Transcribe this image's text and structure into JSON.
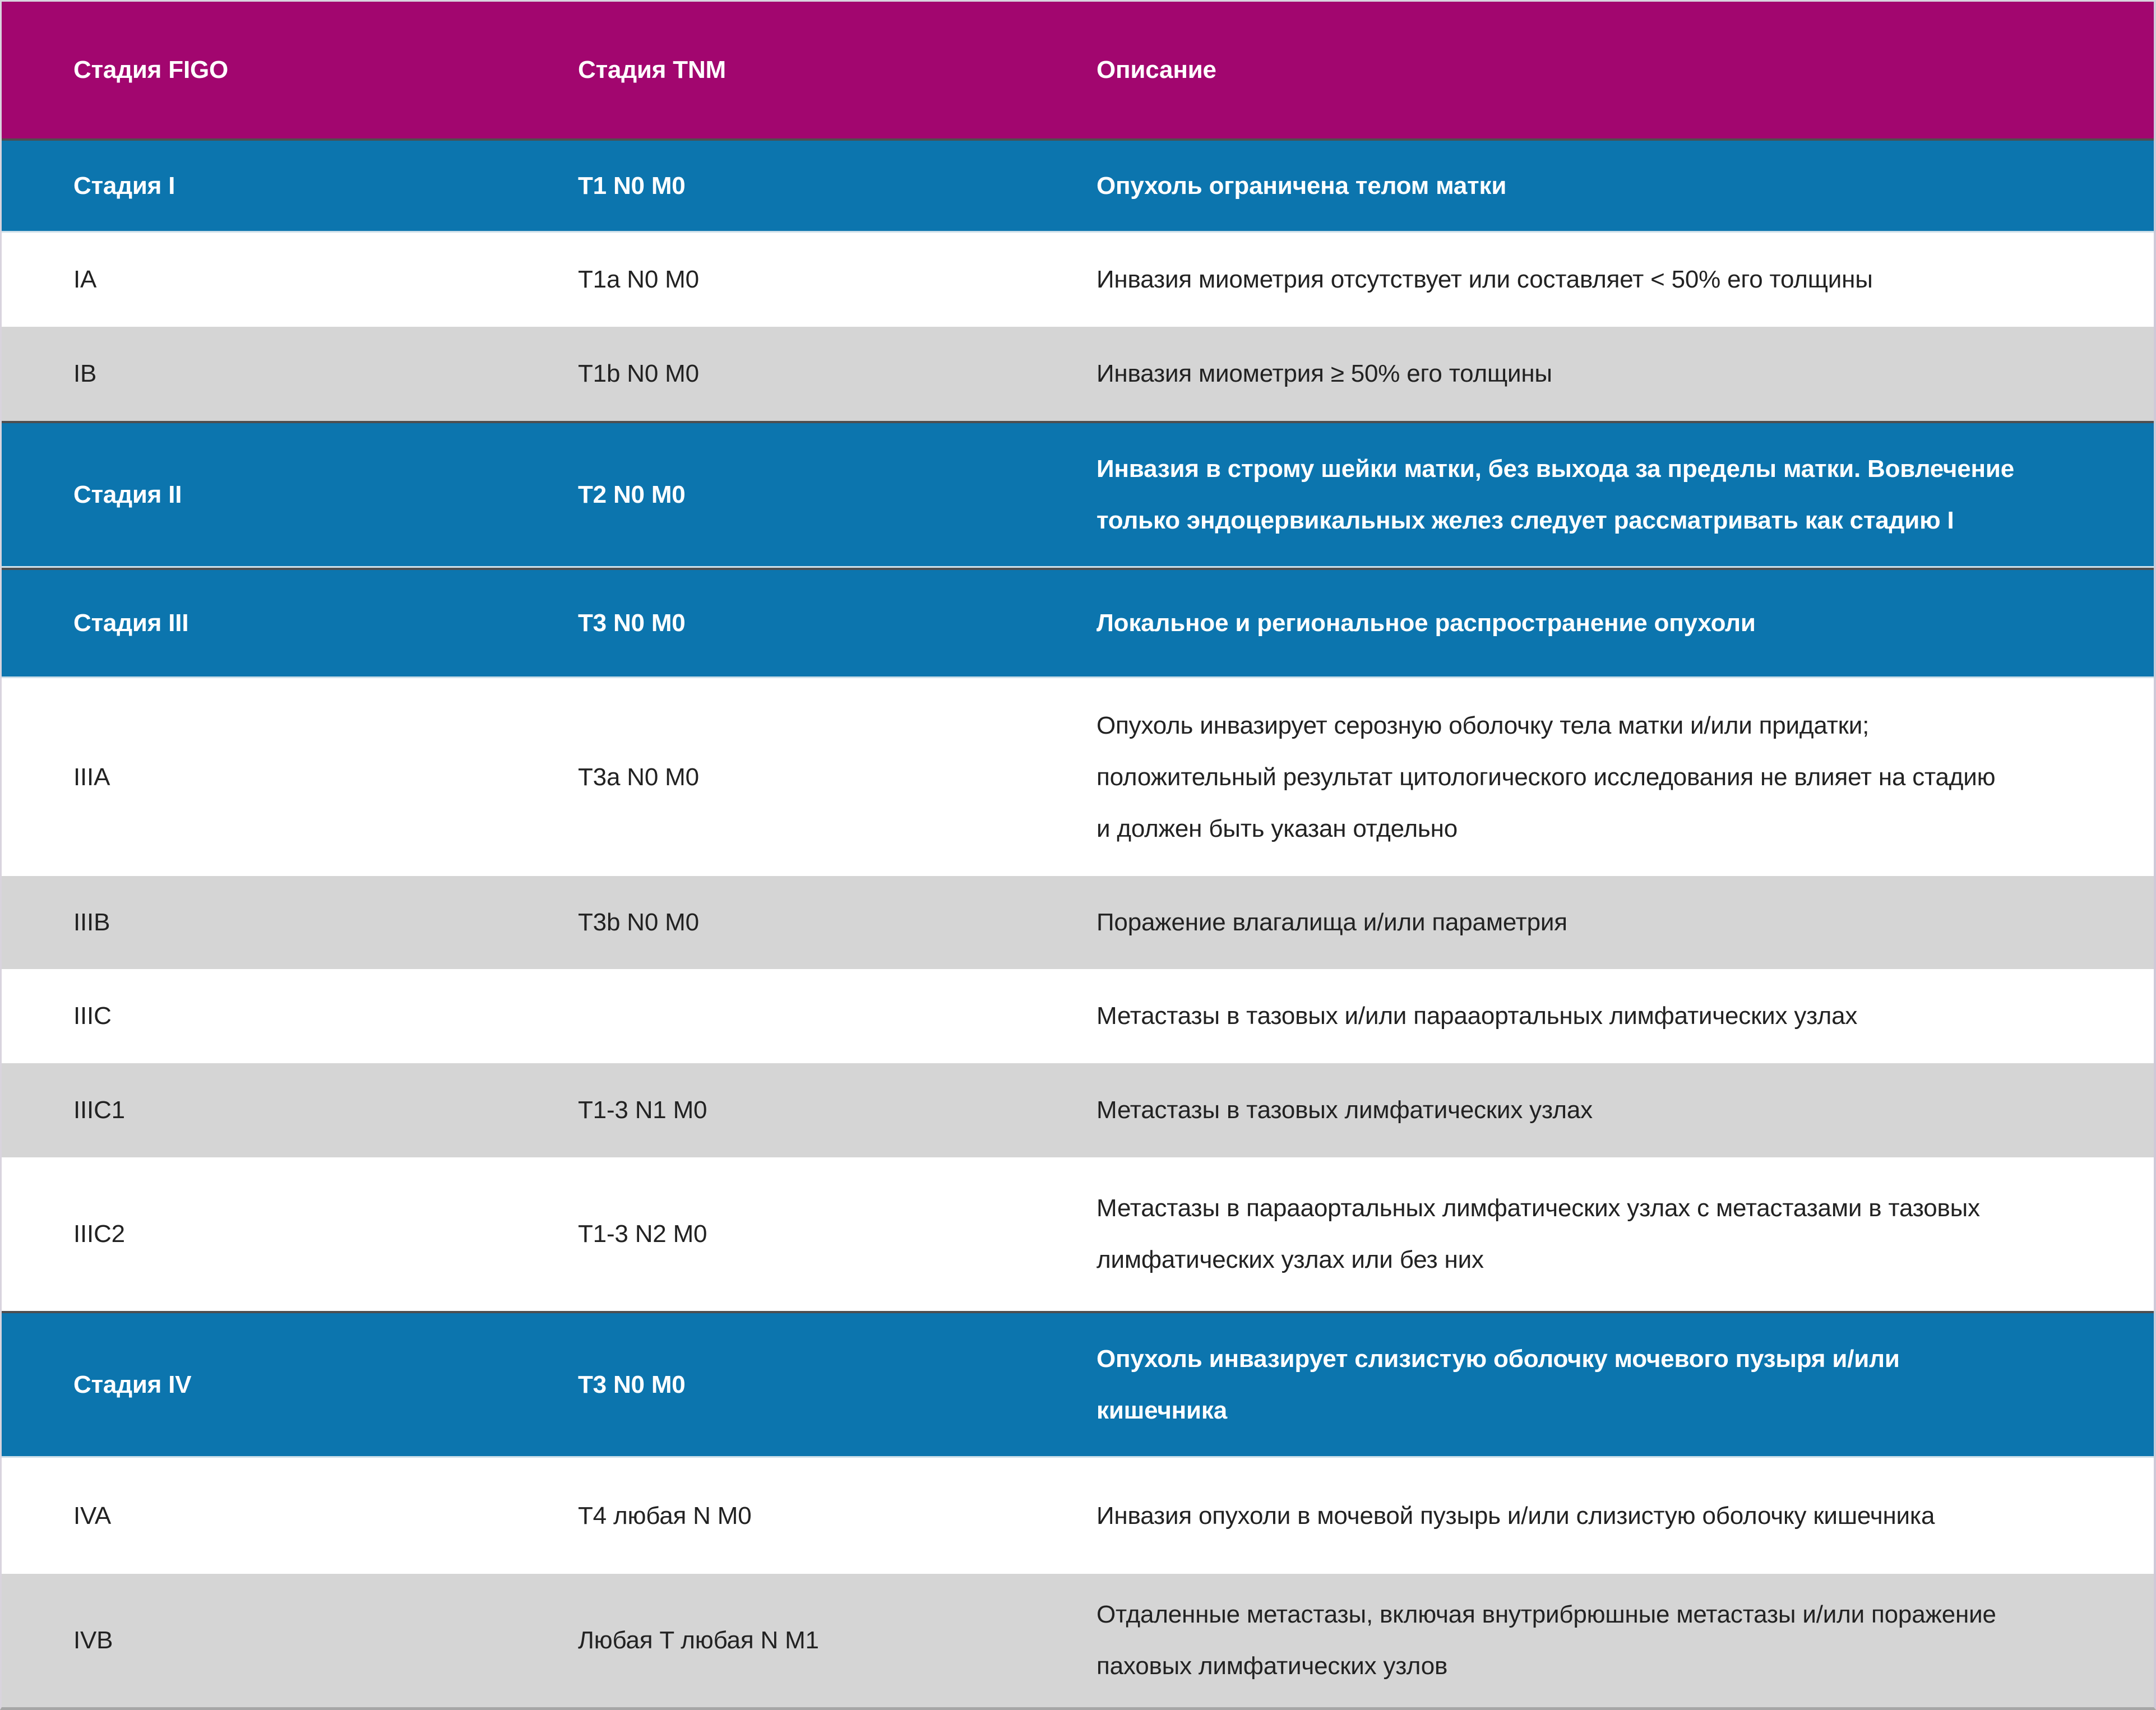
{
  "colors": {
    "header_bg": "#a2066f",
    "stage_row_bg": "#0c75ae",
    "shade_row_bg": "#d5d5d5",
    "light_row_bg": "#ffffff",
    "separator_dark": "#4e4e50",
    "header_text": "#ffffff",
    "body_text": "#222222"
  },
  "header": {
    "columns": [
      "Стадия FIGO",
      "Стадия TNM",
      "Описание"
    ]
  },
  "rows": [
    {
      "figo": "Стадия I",
      "tnm": "T1 N0 M0",
      "desc": "Опухоль ограничена телом матки"
    },
    {
      "figo": "IA",
      "tnm": "T1a N0 M0",
      "desc": "Инвазия миометрия отсутствует или составляет < 50% его толщины"
    },
    {
      "figo": "IB",
      "tnm": "T1b N0 M0",
      "desc": "Инвазия миометрия ≥ 50% его толщины"
    },
    {
      "figo": "Стадия II",
      "tnm": "T2 N0 M0",
      "desc": "Инвазия в строму шейки матки, без выхода за пределы матки. Вовлечение\nтолько эндоцервикальных желез следует рассматривать как стадию I"
    },
    {
      "figo": "Стадия III",
      "tnm": "T3 N0 M0",
      "desc": "Локальное и региональное распространение опухоли"
    },
    {
      "figo": "IIIA",
      "tnm": "T3a N0 M0",
      "desc": "Опухоль инвазирует серозную оболочку тела матки и/или придатки;\nположительный результат цитологического исследования не влияет на стадию\nи должен быть указан отдельно"
    },
    {
      "figo": "IIIB",
      "tnm": "T3b N0 M0",
      "desc": "Поражение влагалища и/или параметрия"
    },
    {
      "figo": "IIIC",
      "tnm": "",
      "desc": "Метастазы в тазовых и/или парааортальных лимфатических узлах"
    },
    {
      "figo": "IIIC1",
      "tnm": "T1-3 N1 M0",
      "desc": "Метастазы в тазовых лимфатических узлах"
    },
    {
      "figo": "IIIC2",
      "tnm": "T1-3 N2 M0",
      "desc": "Метастазы в парааортальных лимфатических узлах с метастазами в тазовых\nлимфатических узлах или без них"
    },
    {
      "figo": "Стадия IV",
      "tnm": "T3 N0 M0",
      "desc": "Опухоль инвазирует слизистую оболочку мочевого пузыря и/или\nкишечника"
    },
    {
      "figo": "IVA",
      "tnm": "T4 любая N M0",
      "desc": "Инвазия опухоли в мочевой пузырь и/или слизистую оболочку кишечника"
    },
    {
      "figo": "IVB",
      "tnm": "Любая T любая N M1",
      "desc": "Отдаленные метастазы, включая внутрибрюшные метастазы и/или поражение\nпаховых лимфатических узлов"
    }
  ]
}
